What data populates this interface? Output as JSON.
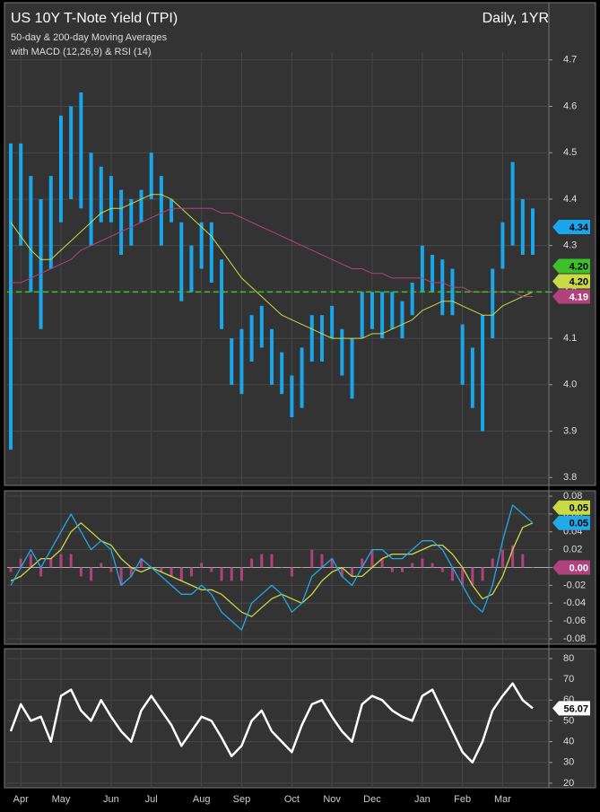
{
  "chart_data": [
    {
      "type": "ohlc",
      "title": "US 10Y T-Note Yield (TPI)",
      "period": "Daily, 1YR",
      "subtitle": [
        "50-day & 200-day Moving Averages",
        "with MACD (12,26,9) & RSI (14)"
      ],
      "ylim": [
        3.785,
        4.717
      ],
      "yticks": [
        3.8,
        3.9,
        {
          "value": 4,
          "label": "4.0"
        },
        4.1,
        4.2,
        4.3,
        4.4,
        4.5,
        4.6,
        4.7
      ],
      "grid": true,
      "bars": {
        "color": "#1aa6ea",
        "low": [
          3.86,
          4.3,
          4.2,
          4.12,
          4.25,
          4.35,
          4.4,
          4.38,
          4.3,
          4.35,
          4.35,
          4.28,
          4.3,
          4.35,
          4.4,
          4.3,
          4.35,
          4.18,
          4.2,
          4.25,
          4.22,
          4.12,
          4.0,
          3.98,
          4.05,
          4.08,
          4.0,
          3.98,
          3.93,
          3.95,
          4.05,
          4.05,
          4.1,
          4.02,
          3.97,
          4.1,
          4.12,
          4.1,
          4.12,
          4.1,
          4.15,
          4.2,
          4.2,
          4.15,
          4.15,
          4.0,
          3.95,
          3.9,
          4.1,
          4.25,
          4.3,
          4.28,
          4.28
        ],
        "high": [
          4.52,
          4.52,
          4.45,
          4.4,
          4.45,
          4.58,
          4.6,
          4.63,
          4.5,
          4.47,
          4.45,
          4.42,
          4.4,
          4.42,
          4.5,
          4.45,
          4.4,
          4.35,
          4.3,
          4.35,
          4.35,
          4.27,
          4.1,
          4.12,
          4.15,
          4.17,
          4.12,
          4.07,
          4.02,
          4.08,
          4.15,
          4.15,
          4.17,
          4.12,
          4.1,
          4.2,
          4.2,
          4.2,
          4.2,
          4.18,
          4.22,
          4.3,
          4.28,
          4.27,
          4.25,
          4.13,
          4.08,
          4.15,
          4.25,
          4.35,
          4.48,
          4.4,
          4.38
        ],
        "last_value": 4.34,
        "last_label": "4.34"
      },
      "reference_line": {
        "value": 4.2,
        "label": "4.20",
        "color": "#3cc12c",
        "dashed": true
      },
      "series": [
        {
          "color": "#c9da45",
          "last_label": "4.20",
          "values": [
            4.35,
            4.32,
            4.29,
            4.27,
            4.27,
            4.29,
            4.31,
            4.33,
            4.35,
            4.37,
            4.38,
            4.38,
            4.39,
            4.4,
            4.41,
            4.41,
            4.4,
            4.38,
            4.36,
            4.34,
            4.32,
            4.29,
            4.26,
            4.23,
            4.21,
            4.19,
            4.17,
            4.15,
            4.14,
            4.13,
            4.12,
            4.11,
            4.1,
            4.1,
            4.1,
            4.1,
            4.11,
            4.11,
            4.12,
            4.13,
            4.14,
            4.16,
            4.17,
            4.18,
            4.18,
            4.17,
            4.16,
            4.15,
            4.15,
            4.17,
            4.18,
            4.19,
            4.2
          ]
        },
        {
          "color": "#b0437d",
          "last_label": "4.19",
          "values": [
            4.22,
            4.22,
            4.23,
            4.24,
            4.25,
            4.26,
            4.27,
            4.29,
            4.3,
            4.31,
            4.32,
            4.33,
            4.34,
            4.35,
            4.36,
            4.37,
            4.38,
            4.38,
            4.38,
            4.38,
            4.38,
            4.37,
            4.37,
            4.36,
            4.35,
            4.34,
            4.33,
            4.32,
            4.31,
            4.3,
            4.29,
            4.28,
            4.27,
            4.26,
            4.25,
            4.25,
            4.24,
            4.24,
            4.23,
            4.23,
            4.23,
            4.23,
            4.22,
            4.22,
            4.21,
            4.21,
            4.2,
            4.2,
            4.2,
            4.2,
            4.2,
            4.19,
            4.19
          ]
        }
      ]
    },
    {
      "type": "macd",
      "ylim": [
        -0.085,
        0.085
      ],
      "yticks": [
        0.08,
        0.06,
        0.04,
        0.02,
        {
          "value": 0,
          "label": "0.00"
        },
        -0.02,
        -0.04,
        -0.06,
        -0.08
      ],
      "grid": true,
      "series": [
        {
          "color": "#c9da45",
          "last_label": "0.05",
          "values": [
            -0.015,
            -0.01,
            0.0,
            0.01,
            0.01,
            0.02,
            0.04,
            0.05,
            0.04,
            0.03,
            0.025,
            0.01,
            0.0,
            -0.005,
            0.0,
            -0.005,
            -0.01,
            -0.015,
            -0.02,
            -0.025,
            -0.025,
            -0.03,
            -0.04,
            -0.05,
            -0.055,
            -0.045,
            -0.035,
            -0.03,
            -0.035,
            -0.04,
            -0.03,
            -0.015,
            -0.005,
            0.0,
            -0.01,
            -0.01,
            0.0,
            0.01,
            0.015,
            0.015,
            0.015,
            0.02,
            0.025,
            0.025,
            0.015,
            0.0,
            -0.02,
            -0.035,
            -0.03,
            -0.01,
            0.02,
            0.045,
            0.05
          ]
        },
        {
          "color": "#22a9e8",
          "last_label": "0.05",
          "values": [
            -0.02,
            0.0,
            0.02,
            0.0,
            0.02,
            0.04,
            0.06,
            0.04,
            0.02,
            0.03,
            0.02,
            -0.02,
            -0.01,
            0.01,
            0.0,
            -0.01,
            -0.02,
            -0.03,
            -0.03,
            -0.02,
            -0.03,
            -0.05,
            -0.06,
            -0.07,
            -0.04,
            -0.03,
            -0.02,
            -0.03,
            -0.05,
            -0.04,
            -0.01,
            0.0,
            0.01,
            -0.01,
            -0.02,
            0.0,
            0.02,
            0.02,
            0.01,
            0.01,
            0.02,
            0.03,
            0.03,
            0.02,
            0.0,
            -0.02,
            -0.04,
            -0.05,
            -0.02,
            0.03,
            0.07,
            0.06,
            0.05
          ]
        }
      ],
      "histogram": {
        "color": "#b0437d",
        "last_label": "0.00",
        "values": [
          -0.005,
          0.01,
          0.015,
          -0.01,
          0.01,
          0.015,
          0.015,
          -0.01,
          -0.015,
          0.005,
          -0.005,
          -0.02,
          -0.01,
          0.01,
          0.0,
          -0.005,
          -0.01,
          -0.015,
          -0.01,
          0.005,
          -0.005,
          -0.015,
          -0.015,
          -0.015,
          0.01,
          0.015,
          0.015,
          0.0,
          -0.01,
          0.0,
          0.02,
          0.015,
          0.01,
          -0.01,
          -0.01,
          0.01,
          0.02,
          0.01,
          -0.005,
          -0.005,
          0.005,
          0.01,
          0.005,
          -0.005,
          -0.015,
          -0.02,
          -0.02,
          -0.015,
          0.01,
          0.02,
          0.025,
          0.015,
          0.0
        ]
      }
    },
    {
      "type": "line",
      "ylim": [
        17.8,
        84.3
      ],
      "yticks": [
        20,
        30,
        40,
        50,
        60,
        70,
        80
      ],
      "grid": true,
      "categories": [
        null,
        "Apr",
        null,
        null,
        null,
        "May",
        null,
        null,
        null,
        null,
        "Jun",
        null,
        null,
        null,
        "Jul",
        null,
        null,
        null,
        null,
        "Aug",
        null,
        null,
        null,
        "Sep",
        null,
        null,
        null,
        null,
        "Oct",
        null,
        null,
        null,
        "Nov",
        null,
        null,
        null,
        "Dec",
        null,
        null,
        null,
        null,
        "Jan",
        null,
        null,
        null,
        "Feb",
        null,
        null,
        null,
        "Mar",
        null,
        null,
        null
      ],
      "series": [
        {
          "color": "#ffffff",
          "last_label": "56.07",
          "values": [
            45,
            58,
            50,
            52,
            40,
            62,
            65,
            55,
            50,
            60,
            52,
            45,
            40,
            55,
            62,
            55,
            48,
            38,
            45,
            52,
            50,
            42,
            33,
            38,
            50,
            55,
            45,
            40,
            35,
            48,
            58,
            60,
            52,
            45,
            40,
            58,
            62,
            60,
            55,
            52,
            50,
            62,
            65,
            55,
            45,
            35,
            30,
            40,
            55,
            62,
            68,
            60,
            56.07
          ]
        }
      ]
    }
  ]
}
